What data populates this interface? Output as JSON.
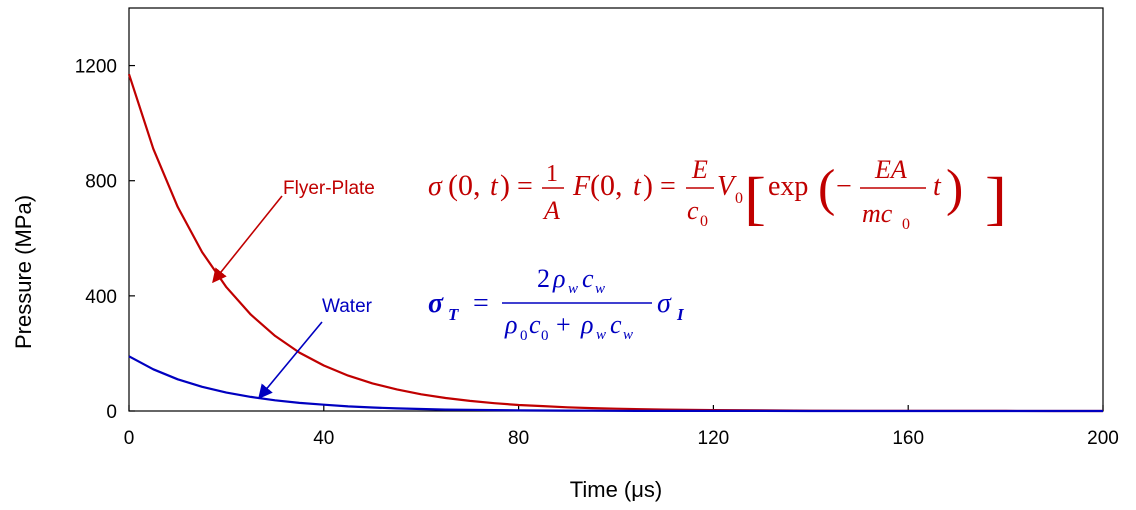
{
  "chart_data": {
    "type": "line",
    "xlabel": "Time (μs)",
    "ylabel": "Pressure (MPa)",
    "xlim": [
      0,
      200
    ],
    "ylim": [
      0,
      1400
    ],
    "xticks": [
      0,
      40,
      80,
      120,
      160,
      200
    ],
    "yticks": [
      0,
      400,
      800,
      1200
    ],
    "grid": false,
    "series": [
      {
        "name": "Flyer-Plate",
        "color": "#c00000",
        "x": [
          0,
          5,
          10,
          15,
          20,
          25,
          30,
          35,
          40,
          45,
          50,
          55,
          60,
          65,
          70,
          75,
          80,
          85,
          90,
          95,
          100,
          110,
          120,
          130,
          140,
          150,
          160,
          170,
          180,
          190,
          200
        ],
        "y": [
          1170,
          911,
          709,
          552,
          430,
          335,
          261,
          203,
          158,
          123,
          96,
          75,
          58,
          45,
          35,
          27,
          21,
          17,
          13,
          10,
          8,
          5,
          3,
          2,
          1,
          0.7,
          0.4,
          0.3,
          0.2,
          0.1,
          0.1
        ]
      },
      {
        "name": "Water",
        "color": "#0000c0",
        "x": [
          0,
          5,
          10,
          15,
          20,
          25,
          30,
          35,
          40,
          45,
          50,
          55,
          60,
          65,
          70,
          75,
          80,
          85,
          90,
          95,
          100,
          110,
          120,
          130,
          140,
          150,
          160,
          170,
          180,
          190,
          200
        ],
        "y": [
          190,
          145,
          110,
          84,
          64,
          49,
          37,
          28,
          22,
          16,
          12,
          9,
          7,
          5,
          4,
          3,
          2,
          1.7,
          1.3,
          1,
          0.8,
          0.5,
          0.3,
          0.2,
          0.1,
          0.1,
          0,
          0,
          0,
          0,
          0
        ]
      }
    ],
    "annotations": [
      {
        "text": "Flyer-Plate",
        "color": "#c00000",
        "arrow_to": [
          17,
          440
        ]
      },
      {
        "text": "Water",
        "color": "#0000c0",
        "arrow_to": [
          27,
          40
        ]
      }
    ],
    "equations": [
      {
        "color": "#c00000",
        "latex": "\\sigma(0,t)=\\frac{1}{A}F(0,t)=\\frac{E}{c_0}V_0\\left[\\exp\\left(-\\frac{EA}{mc_0}t\\right)\\right]"
      },
      {
        "color": "#0000c0",
        "latex": "\\sigma_T=\\frac{2\\rho_w c_w}{\\rho_0 c_0+\\rho_w c_w}\\sigma_I"
      }
    ]
  }
}
